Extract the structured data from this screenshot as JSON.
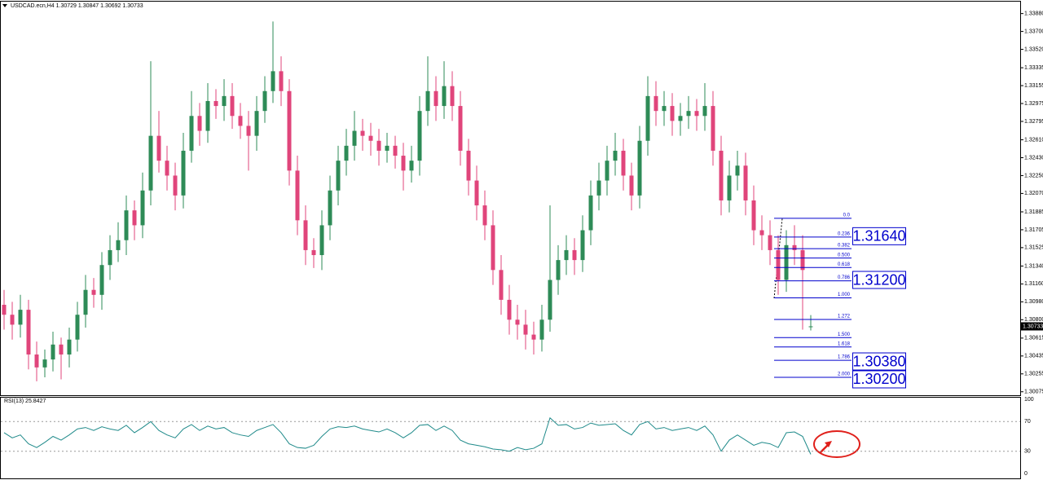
{
  "chart_data": [
    {
      "type": "candlestick",
      "title": "USDCAD.ecn,H4  1.30729 1.30847 1.30692 1.30733",
      "open": [
        1.3095,
        1.3085,
        1.3075,
        1.309,
        1.3045,
        1.3032,
        1.304,
        1.3055,
        1.3045,
        1.306,
        1.3085,
        1.311,
        1.3105,
        1.3135,
        1.315,
        1.316,
        1.319,
        1.3175,
        1.321,
        1.3265,
        1.324,
        1.3225,
        1.3205,
        1.325,
        1.3285,
        1.327,
        1.33,
        1.3295,
        1.3305,
        1.3285,
        1.3275,
        1.3265,
        1.329,
        1.331,
        1.333,
        1.331,
        1.323,
        1.318,
        1.315,
        1.3145,
        1.3175,
        1.321,
        1.324,
        1.3255,
        1.327,
        1.3265,
        1.326,
        1.325,
        1.3255,
        1.3245,
        1.323,
        1.324,
        1.329,
        1.331,
        1.3295,
        1.3315,
        1.3295,
        1.325,
        1.322,
        1.3195,
        1.3175,
        1.313,
        1.31,
        1.308,
        1.3075,
        1.3065,
        1.306,
        1.308,
        1.312,
        1.314,
        1.315,
        1.314,
        1.317,
        1.3205,
        1.322,
        1.324,
        1.325,
        1.3225,
        1.3205,
        1.326,
        1.3305,
        1.329,
        1.3295,
        1.328,
        1.3285,
        1.329,
        1.3285,
        1.3295,
        1.325,
        1.32,
        1.3225,
        1.3235,
        1.32,
        1.317,
        1.3165,
        1.315,
        1.312,
        1.3155,
        1.315,
        1.30729
      ],
      "high": [
        1.311,
        1.3098,
        1.3105,
        1.31,
        1.3058,
        1.305,
        1.3068,
        1.3062,
        1.3072,
        1.3098,
        1.3125,
        1.3122,
        1.3148,
        1.3165,
        1.3178,
        1.3205,
        1.32,
        1.3228,
        1.334,
        1.329,
        1.3255,
        1.3238,
        1.3268,
        1.331,
        1.3298,
        1.3318,
        1.3312,
        1.3322,
        1.3318,
        1.3298,
        1.329,
        1.3305,
        1.3325,
        1.338,
        1.3345,
        1.3322,
        1.3245,
        1.3195,
        1.3162,
        1.319,
        1.3225,
        1.3255,
        1.3272,
        1.329,
        1.3282,
        1.3278,
        1.3272,
        1.3268,
        1.3265,
        1.3258,
        1.3255,
        1.3305,
        1.3345,
        1.3325,
        1.334,
        1.333,
        1.331,
        1.3262,
        1.3235,
        1.321,
        1.319,
        1.3145,
        1.3115,
        1.3095,
        1.309,
        1.3078,
        1.3095,
        1.3195,
        1.3155,
        1.3165,
        1.3162,
        1.3185,
        1.322,
        1.3238,
        1.3255,
        1.3268,
        1.3262,
        1.3238,
        1.3275,
        1.3325,
        1.332,
        1.331,
        1.3308,
        1.3298,
        1.3305,
        1.3302,
        1.3318,
        1.331,
        1.3265,
        1.324,
        1.325,
        1.3248,
        1.3215,
        1.3185,
        1.318,
        1.3165,
        1.317,
        1.3175,
        1.3165,
        1.30847
      ],
      "low": [
        1.307,
        1.306,
        1.3062,
        1.303,
        1.3018,
        1.3022,
        1.3028,
        1.302,
        1.3032,
        1.3048,
        1.3072,
        1.3092,
        1.309,
        1.312,
        1.3138,
        1.3145,
        1.316,
        1.3162,
        1.3195,
        1.3228,
        1.321,
        1.319,
        1.3192,
        1.3238,
        1.3255,
        1.3258,
        1.3282,
        1.328,
        1.3272,
        1.3262,
        1.323,
        1.325,
        1.3278,
        1.3298,
        1.3295,
        1.3215,
        1.3165,
        1.3135,
        1.3132,
        1.313,
        1.316,
        1.3195,
        1.3225,
        1.324,
        1.325,
        1.3245,
        1.3235,
        1.3238,
        1.3232,
        1.321,
        1.3218,
        1.3225,
        1.3275,
        1.328,
        1.3282,
        1.328,
        1.3235,
        1.3205,
        1.318,
        1.316,
        1.3115,
        1.3085,
        1.3065,
        1.306,
        1.305,
        1.3045,
        1.3048,
        1.3068,
        1.3105,
        1.3125,
        1.3125,
        1.3128,
        1.3155,
        1.319,
        1.3205,
        1.3225,
        1.321,
        1.319,
        1.3192,
        1.3245,
        1.3275,
        1.3275,
        1.3265,
        1.3265,
        1.3272,
        1.327,
        1.327,
        1.3235,
        1.3185,
        1.3188,
        1.321,
        1.3185,
        1.3155,
        1.315,
        1.3135,
        1.3105,
        1.3108,
        1.3135,
        1.307,
        1.30692
      ],
      "close": [
        1.3085,
        1.3075,
        1.309,
        1.3045,
        1.3032,
        1.304,
        1.3055,
        1.3045,
        1.306,
        1.3085,
        1.311,
        1.3105,
        1.3135,
        1.315,
        1.316,
        1.319,
        1.3175,
        1.321,
        1.3265,
        1.324,
        1.3225,
        1.3205,
        1.325,
        1.3285,
        1.327,
        1.33,
        1.3295,
        1.3305,
        1.3285,
        1.3275,
        1.3265,
        1.329,
        1.331,
        1.333,
        1.331,
        1.323,
        1.318,
        1.315,
        1.3145,
        1.3175,
        1.321,
        1.324,
        1.3255,
        1.327,
        1.3265,
        1.326,
        1.325,
        1.3255,
        1.3245,
        1.323,
        1.324,
        1.329,
        1.331,
        1.3295,
        1.3315,
        1.3295,
        1.325,
        1.322,
        1.3195,
        1.3175,
        1.313,
        1.31,
        1.308,
        1.3075,
        1.3065,
        1.306,
        1.308,
        1.312,
        1.314,
        1.315,
        1.314,
        1.317,
        1.3205,
        1.322,
        1.324,
        1.325,
        1.3225,
        1.3205,
        1.326,
        1.3305,
        1.329,
        1.3295,
        1.328,
        1.3285,
        1.329,
        1.3285,
        1.3295,
        1.325,
        1.32,
        1.3225,
        1.3235,
        1.32,
        1.317,
        1.3165,
        1.315,
        1.312,
        1.3155,
        1.315,
        1.313,
        1.30733
      ],
      "bull_color": "#2e8b57",
      "bear_color": "#e0457b",
      "ylim": [
        1.3004,
        1.34
      ],
      "yticks": [
        {
          "value": 1.3388,
          "label": "1.33880"
        },
        {
          "value": 1.337,
          "label": "1.33700"
        },
        {
          "value": 1.3352,
          "label": "1.33520"
        },
        {
          "value": 1.33335,
          "label": "1.33335"
        },
        {
          "value": 1.33155,
          "label": "1.33155"
        },
        {
          "value": 1.32975,
          "label": "1.32975"
        },
        {
          "value": 1.32795,
          "label": "1.32795"
        },
        {
          "value": 1.3261,
          "label": "1.32610"
        },
        {
          "value": 1.3243,
          "label": "1.32430"
        },
        {
          "value": 1.3225,
          "label": "1.32250"
        },
        {
          "value": 1.3207,
          "label": "1.32070"
        },
        {
          "value": 1.31885,
          "label": "1.31885"
        },
        {
          "value": 1.31705,
          "label": "1.31705"
        },
        {
          "value": 1.31525,
          "label": "1.31525"
        },
        {
          "value": 1.3134,
          "label": "1.31340"
        },
        {
          "value": 1.3116,
          "label": "1.31160"
        },
        {
          "value": 1.3098,
          "label": "1.30980"
        },
        {
          "value": 1.308,
          "label": "1.30800"
        },
        {
          "value": 1.30615,
          "label": "1.30615"
        },
        {
          "value": 1.30435,
          "label": "1.30435"
        },
        {
          "value": 1.30255,
          "label": "1.30255"
        },
        {
          "value": 1.30075,
          "label": "1.30075"
        }
      ],
      "fib": {
        "high": 1.3182,
        "low": 1.3102,
        "color": "#0000cd",
        "levels": [
          {
            "value": 0,
            "label": "0.0"
          },
          {
            "value": 0.236,
            "label": "0.236"
          },
          {
            "value": 0.382,
            "label": "0.382"
          },
          {
            "value": 0.5,
            "label": "0.500"
          },
          {
            "value": 0.618,
            "label": "0.618"
          },
          {
            "value": 0.786,
            "label": "0.786"
          },
          {
            "value": 1,
            "label": "1.000"
          },
          {
            "value": 1.272,
            "label": "1.272"
          },
          {
            "value": 1.5,
            "label": "1.500"
          },
          {
            "value": 1.618,
            "label": "1.618"
          },
          {
            "value": 1.786,
            "label": "1.786"
          },
          {
            "value": 2,
            "label": "2.000"
          }
        ]
      },
      "price_labels": [
        {
          "value": 1.3164,
          "label": "1.31640"
        },
        {
          "value": 1.312,
          "label": "1.31200"
        },
        {
          "value": 1.3038,
          "label": "1.30380"
        },
        {
          "value": 1.302,
          "label": "1.30200"
        }
      ]
    },
    {
      "type": "line",
      "title": "RSI(13) 25.8427",
      "color": "#1f8a8a",
      "values": [
        55,
        48,
        52,
        40,
        35,
        42,
        50,
        45,
        52,
        60,
        62,
        58,
        63,
        60,
        58,
        65,
        55,
        62,
        70,
        58,
        52,
        48,
        60,
        66,
        58,
        64,
        60,
        62,
        55,
        52,
        50,
        58,
        62,
        66,
        55,
        40,
        35,
        34,
        38,
        50,
        60,
        63,
        62,
        64,
        60,
        58,
        56,
        60,
        55,
        48,
        55,
        65,
        66,
        58,
        64,
        58,
        45,
        40,
        38,
        36,
        33,
        32,
        30,
        35,
        32,
        34,
        40,
        75,
        65,
        66,
        60,
        62,
        68,
        65,
        66,
        67,
        58,
        52,
        66,
        70,
        60,
        62,
        58,
        60,
        62,
        58,
        64,
        52,
        30,
        45,
        52,
        45,
        38,
        42,
        40,
        35,
        55,
        56,
        50,
        25.8427
      ],
      "ylim": [
        0,
        100
      ],
      "yticks": [
        0,
        30,
        70,
        100
      ]
    }
  ]
}
